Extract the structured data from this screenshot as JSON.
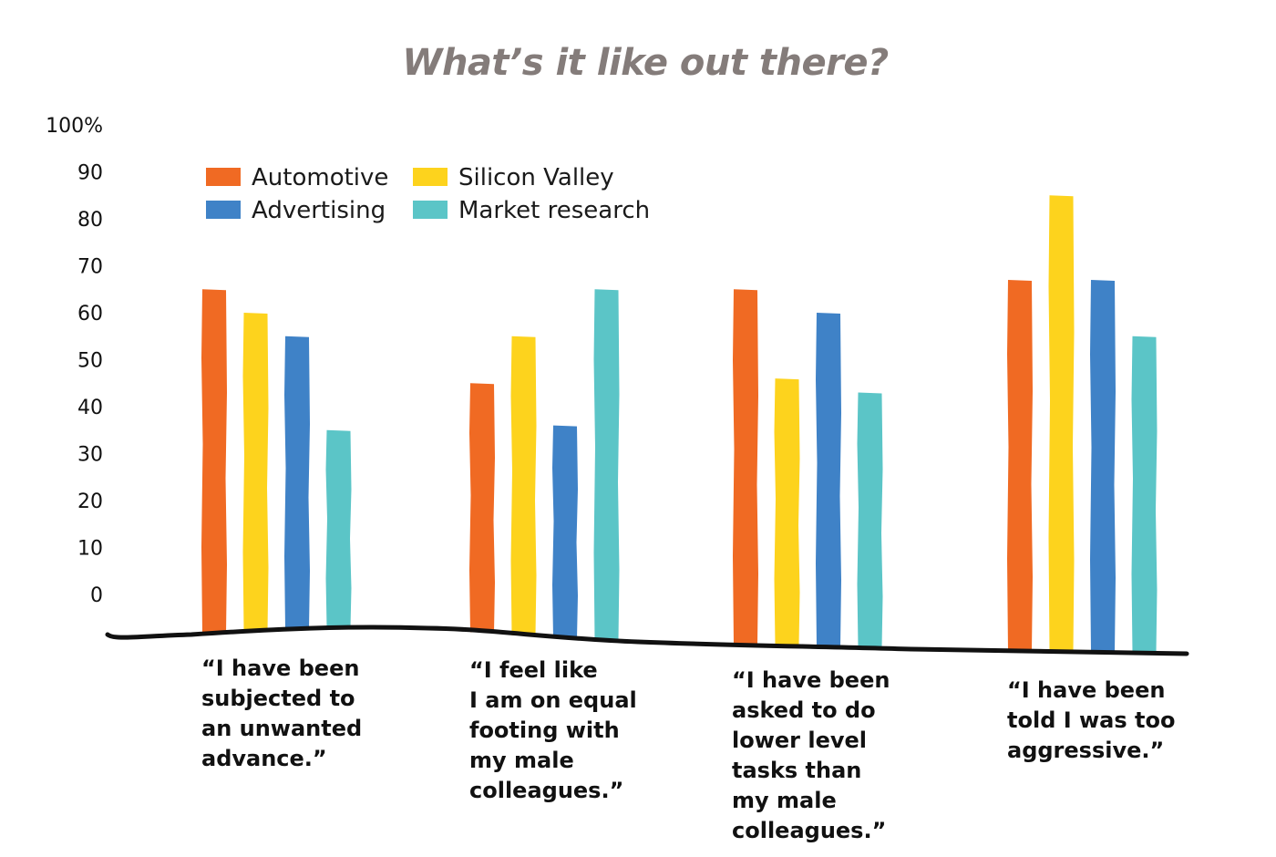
{
  "chart_data": {
    "type": "bar",
    "title": "What’s it like out there?",
    "ylabel": "",
    "xlabel": "",
    "ylim": [
      0,
      100
    ],
    "y_ticks": [
      "100%",
      "90",
      "80",
      "70",
      "60",
      "50",
      "40",
      "30",
      "20",
      "10",
      "0"
    ],
    "categories": [
      "“I have been\nsubjected to\nan unwanted\nadvance.”",
      "“I feel like\nI am on equal\nfooting with\nmy male\ncolleagues.”",
      "“I have been\nasked to do\nlower level\ntasks than\nmy male\ncolleagues.”",
      "“I have been\ntold I was too\naggressive.”"
    ],
    "series": [
      {
        "name": "Automotive",
        "color": "#f06a23",
        "values": [
          65,
          45,
          65,
          67
        ]
      },
      {
        "name": "Silicon Valley",
        "color": "#fdd31d",
        "values": [
          60,
          55,
          46,
          85
        ]
      },
      {
        "name": "Advertising",
        "color": "#3f82c7",
        "values": [
          55,
          36,
          60,
          67
        ]
      },
      {
        "name": "Market research",
        "color": "#5bc5c7",
        "values": [
          35,
          65,
          43,
          55
        ]
      }
    ],
    "legend_position": "top-left",
    "grid": false
  }
}
